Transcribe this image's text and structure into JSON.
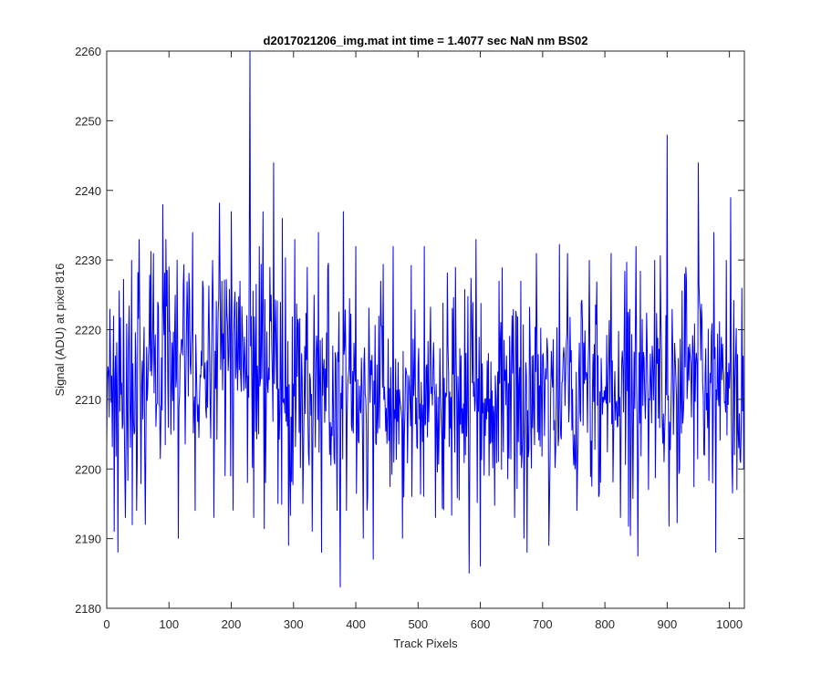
{
  "chart_data": {
    "type": "line",
    "title": "d2017021206_img.mat int time = 1.4077 sec  NaN nm BS02",
    "xlabel": "Track Pixels",
    "ylabel": "Signal (ADU) at pixel 816",
    "xlim": [
      0,
      1024
    ],
    "ylim": [
      2180,
      2260
    ],
    "xticks": [
      0,
      100,
      200,
      300,
      400,
      500,
      600,
      700,
      800,
      900,
      1000
    ],
    "yticks": [
      2180,
      2190,
      2200,
      2210,
      2220,
      2230,
      2240,
      2250,
      2260
    ],
    "grid": false,
    "line_color": "#0000ff",
    "series": [
      {
        "peaks": [
          [
            5,
            2223
          ],
          [
            12,
            2191
          ],
          [
            18,
            2188
          ],
          [
            30,
            2193
          ],
          [
            40,
            2230
          ],
          [
            48,
            2194
          ],
          [
            52,
            2233
          ],
          [
            62,
            2192
          ],
          [
            75,
            2231
          ],
          [
            82,
            2224
          ],
          [
            90,
            2238
          ],
          [
            95,
            2233
          ],
          [
            110,
            2225
          ],
          [
            115,
            2190
          ],
          [
            130,
            2222
          ],
          [
            138,
            2234
          ],
          [
            142,
            2194
          ],
          [
            155,
            2226
          ],
          [
            170,
            2230
          ],
          [
            172,
            2193
          ],
          [
            185,
            2227
          ],
          [
            190,
            2199
          ],
          [
            200,
            2237
          ],
          [
            214,
            2227
          ],
          [
            222,
            2216
          ],
          [
            226,
            2198
          ],
          [
            230,
            2260
          ],
          [
            236,
            2193
          ],
          [
            245,
            2232
          ],
          [
            255,
            2198
          ],
          [
            262,
            2229
          ],
          [
            268,
            2244
          ],
          [
            275,
            2195
          ],
          [
            282,
            2236
          ],
          [
            292,
            2189
          ],
          [
            302,
            2233
          ],
          [
            315,
            2195
          ],
          [
            322,
            2229
          ],
          [
            330,
            2191
          ],
          [
            340,
            2234
          ],
          [
            345,
            2188
          ],
          [
            355,
            2229
          ],
          [
            370,
            2194
          ],
          [
            375,
            2183
          ],
          [
            380,
            2237
          ],
          [
            385,
            2194
          ],
          [
            400,
            2232
          ],
          [
            412,
            2190
          ],
          [
            428,
            2187
          ],
          [
            440,
            2227
          ],
          [
            460,
            2232
          ],
          [
            475,
            2190
          ],
          [
            490,
            2196
          ],
          [
            510,
            2232
          ],
          [
            528,
            2193
          ],
          [
            560,
            2229
          ],
          [
            582,
            2185
          ],
          [
            593,
            2233
          ],
          [
            600,
            2186
          ],
          [
            630,
            2227
          ],
          [
            655,
            2193
          ],
          [
            665,
            2227
          ],
          [
            670,
            2190
          ],
          [
            675,
            2188
          ],
          [
            690,
            2231
          ],
          [
            710,
            2189
          ],
          [
            740,
            2231
          ],
          [
            755,
            2194
          ],
          [
            775,
            2230
          ],
          [
            790,
            2196
          ],
          [
            810,
            2231
          ],
          [
            825,
            2193
          ],
          [
            850,
            2232
          ],
          [
            870,
            2197
          ],
          [
            880,
            2230
          ],
          [
            895,
            2201
          ],
          [
            900,
            2248
          ],
          [
            920,
            2200
          ],
          [
            930,
            2229
          ],
          [
            950,
            2244
          ],
          [
            960,
            2202
          ],
          [
            975,
            2234
          ],
          [
            978,
            2188
          ],
          [
            995,
            2230
          ],
          [
            1002,
            2239
          ],
          [
            1008,
            2202
          ],
          [
            1012,
            2197
          ],
          [
            1020,
            2226
          ]
        ]
      }
    ]
  }
}
